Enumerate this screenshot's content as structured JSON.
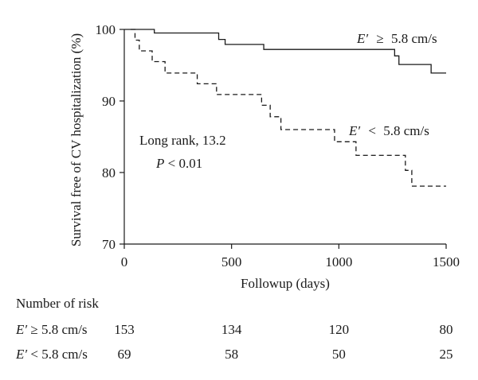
{
  "chart_data": {
    "type": "line",
    "subtype": "step (Kaplan-Meier survival)",
    "ylabel": "Survival free of CV hospitalization (%)",
    "xlabel": "Followup (days)",
    "xlim": [
      0,
      1500
    ],
    "ylim": [
      70,
      100
    ],
    "xticks": [
      0,
      500,
      1000,
      1500
    ],
    "yticks": [
      70,
      80,
      90,
      100
    ],
    "grid": false,
    "series": [
      {
        "label_var": "E′",
        "label_op": "≥",
        "label_val": "5.8 cm/s",
        "line_style": "solid",
        "x": [
          0,
          40,
          140,
          440,
          470,
          650,
          1260,
          1280,
          1300,
          1430,
          1500
        ],
        "y": [
          100,
          100,
          99.5,
          98.6,
          97.9,
          97.2,
          96.3,
          95.1,
          95.1,
          93.9,
          93.9
        ]
      },
      {
        "label_var": "E′",
        "label_op": "<",
        "label_val": "5.8 cm/s",
        "line_style": "dashed",
        "x": [
          30,
          40,
          50,
          70,
          130,
          190,
          340,
          430,
          640,
          680,
          730,
          980,
          1080,
          1310,
          1340,
          1500
        ],
        "y": [
          100,
          100,
          98.5,
          97.0,
          95.5,
          93.9,
          92.4,
          90.9,
          89.4,
          87.8,
          86.0,
          84.3,
          82.4,
          80.3,
          78.1,
          78.1
        ]
      }
    ],
    "annotation": {
      "line1": "Long rank, 13.2",
      "line2_var": "P",
      "line2_rest": " < 0.01"
    }
  },
  "risk_table": {
    "title": "Number of risk",
    "columns_x_days": [
      0,
      500,
      1000,
      1500
    ],
    "rows": [
      {
        "label_var": "E′",
        "label_rest": " ≥ 5.8 cm/s",
        "values": [
          "153",
          "134",
          "120",
          "80"
        ]
      },
      {
        "label_var": "E′",
        "label_rest": " < 5.8 cm/s",
        "values": [
          "69",
          "58",
          "50",
          "25"
        ]
      }
    ]
  }
}
